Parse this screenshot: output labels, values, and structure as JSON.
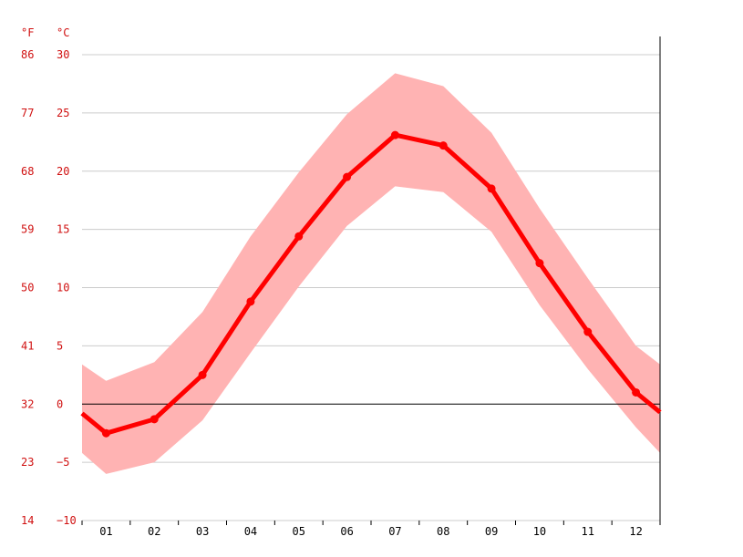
{
  "chart_data": {
    "type": "line",
    "title": "",
    "xlabel": "",
    "ylabel": "",
    "y_unit_left": "°F",
    "y_unit_right": "°C",
    "categories": [
      "01",
      "02",
      "03",
      "04",
      "05",
      "06",
      "07",
      "08",
      "09",
      "10",
      "11",
      "12"
    ],
    "y_ticks_c": [
      "30",
      "25",
      "20",
      "15",
      "10",
      "5",
      "0",
      "−5",
      "−10"
    ],
    "y_ticks_f": [
      "86",
      "77",
      "68",
      "59",
      "50",
      "41",
      "32",
      "23",
      "14"
    ],
    "ylim": [
      -10,
      30
    ],
    "series": [
      {
        "values": [
          -2.5,
          -1.3,
          2.5,
          8.8,
          14.4,
          19.5,
          23.1,
          22.2,
          18.5,
          12.1,
          6.2,
          1.0
        ]
      }
    ],
    "range_upper": [
      2.0,
      3.6,
      7.9,
      14.4,
      19.9,
      24.9,
      28.4,
      27.3,
      23.3,
      16.8,
      10.8,
      5.0
    ],
    "range_lower": [
      -6.0,
      -5.0,
      -1.4,
      4.4,
      10.1,
      15.3,
      18.7,
      18.2,
      14.8,
      8.5,
      3.0,
      -2.0
    ],
    "edge_values": {
      "start": {
        "mean": -0.8,
        "upper": 3.4,
        "lower": -4.2
      },
      "end": {
        "mean": -0.7,
        "upper": 3.4,
        "lower": -4.2
      }
    },
    "grid": true,
    "colors": {
      "line": "#ff0000",
      "band": "#ffb3b3",
      "grid": "#cccccc",
      "zero": "#000000",
      "labels": "#d01010",
      "axis_labels": "#000000"
    }
  }
}
